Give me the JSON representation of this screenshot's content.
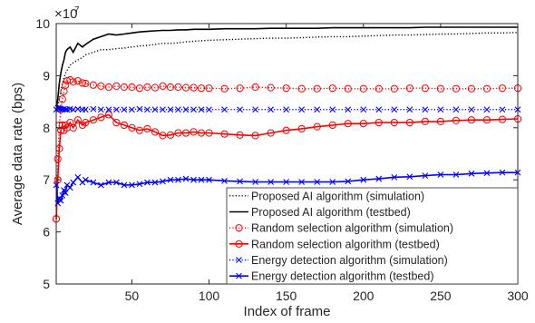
{
  "chart_data": {
    "type": "line",
    "title": "",
    "xlabel": "Index of frame",
    "ylabel": "Average data rate (bps)",
    "y_exponent_label": "×10",
    "y_exponent_power": "7",
    "xlim": [
      1,
      300
    ],
    "ylim": [
      5,
      10
    ],
    "x_ticks": [
      50,
      100,
      150,
      200,
      250,
      300
    ],
    "y_ticks": [
      5,
      6,
      7,
      8,
      9,
      10
    ],
    "grid": false,
    "legend_position": "bottom-right",
    "x": [
      1,
      2,
      3,
      4,
      5,
      6,
      7,
      8,
      10,
      12,
      15,
      18,
      20,
      25,
      30,
      35,
      40,
      45,
      50,
      55,
      60,
      65,
      70,
      75,
      80,
      85,
      90,
      95,
      100,
      110,
      120,
      130,
      140,
      150,
      160,
      170,
      180,
      190,
      200,
      210,
      220,
      230,
      240,
      250,
      260,
      270,
      280,
      290,
      300
    ],
    "series": [
      {
        "name": "Proposed AI algorithm (simulation)",
        "color": "#000000",
        "dash": "dotted",
        "marker": "none",
        "values": [
          8.3,
          8.4,
          8.55,
          8.7,
          8.85,
          8.95,
          9.05,
          9.1,
          9.2,
          9.25,
          9.3,
          9.35,
          9.4,
          9.45,
          9.5,
          9.5,
          9.52,
          9.53,
          9.55,
          9.57,
          9.58,
          9.6,
          9.62,
          9.62,
          9.63,
          9.65,
          9.66,
          9.67,
          9.68,
          9.69,
          9.7,
          9.71,
          9.72,
          9.72,
          9.73,
          9.74,
          9.75,
          9.75,
          9.76,
          9.77,
          9.78,
          9.78,
          9.79,
          9.8,
          9.8,
          9.81,
          9.82,
          9.82,
          9.83
        ]
      },
      {
        "name": "Proposed AI algorithm (testbed)",
        "color": "#000000",
        "dash": "solid",
        "marker": "none",
        "values": [
          8.35,
          8.55,
          8.85,
          9.05,
          9.2,
          9.3,
          9.45,
          9.5,
          9.55,
          9.45,
          9.62,
          9.55,
          9.6,
          9.7,
          9.75,
          9.8,
          9.78,
          9.8,
          9.82,
          9.84,
          9.85,
          9.86,
          9.87,
          9.87,
          9.88,
          9.88,
          9.89,
          9.89,
          9.89,
          9.9,
          9.9,
          9.9,
          9.91,
          9.91,
          9.91,
          9.91,
          9.92,
          9.92,
          9.92,
          9.92,
          9.92,
          9.92,
          9.93,
          9.93,
          9.93,
          9.93,
          9.93,
          9.93,
          9.93
        ]
      },
      {
        "name": "Random selection algorithm (simulation)",
        "color": "#ff0000",
        "dash": "dotted",
        "marker": "circle",
        "values": [
          6.25,
          7.4,
          8.05,
          8.35,
          8.55,
          8.7,
          8.82,
          8.9,
          8.92,
          8.88,
          8.9,
          8.86,
          8.85,
          8.82,
          8.8,
          8.78,
          8.8,
          8.78,
          8.78,
          8.76,
          8.78,
          8.77,
          8.8,
          8.78,
          8.78,
          8.77,
          8.77,
          8.76,
          8.76,
          8.75,
          8.76,
          8.78,
          8.77,
          8.76,
          8.75,
          8.75,
          8.76,
          8.75,
          8.75,
          8.75,
          8.75,
          8.76,
          8.76,
          8.75,
          8.75,
          8.75,
          8.75,
          8.76,
          8.76
        ]
      },
      {
        "name": "Random selection algorithm (testbed)",
        "color": "#ff0000",
        "dash": "solid",
        "marker": "circle",
        "values": [
          6.25,
          7.0,
          7.6,
          7.95,
          8.05,
          7.95,
          8.05,
          8.0,
          8.1,
          8.0,
          8.15,
          8.05,
          8.1,
          8.15,
          8.2,
          8.25,
          8.1,
          8.05,
          8.0,
          7.95,
          7.98,
          7.92,
          7.85,
          7.86,
          7.9,
          7.9,
          7.92,
          7.9,
          7.9,
          7.88,
          7.86,
          7.85,
          7.9,
          7.95,
          7.98,
          8.02,
          8.05,
          8.08,
          8.08,
          8.1,
          8.1,
          8.1,
          8.12,
          8.12,
          8.14,
          8.15,
          8.15,
          8.16,
          8.17
        ]
      },
      {
        "name": "Energy detection algorithm (simulation)",
        "color": "#0000ff",
        "dash": "dotted",
        "marker": "x",
        "values": [
          8.35,
          8.38,
          8.37,
          8.36,
          8.35,
          8.36,
          8.35,
          8.35,
          8.36,
          8.35,
          8.36,
          8.35,
          8.35,
          8.36,
          8.35,
          8.35,
          8.35,
          8.35,
          8.35,
          8.36,
          8.35,
          8.35,
          8.35,
          8.35,
          8.35,
          8.35,
          8.35,
          8.35,
          8.35,
          8.35,
          8.35,
          8.35,
          8.35,
          8.35,
          8.35,
          8.35,
          8.35,
          8.35,
          8.35,
          8.35,
          8.35,
          8.35,
          8.35,
          8.35,
          8.35,
          8.35,
          8.35,
          8.35,
          8.35
        ]
      },
      {
        "name": "Energy detection algorithm (testbed)",
        "color": "#0000ff",
        "dash": "solid",
        "marker": "x",
        "values": [
          6.9,
          6.55,
          6.65,
          6.6,
          6.7,
          6.8,
          6.75,
          6.9,
          6.85,
          6.95,
          7.05,
          6.95,
          7.0,
          6.95,
          6.9,
          6.95,
          6.95,
          6.9,
          6.9,
          6.92,
          6.95,
          6.95,
          6.97,
          7.0,
          7.0,
          7.02,
          7.0,
          7.0,
          7.0,
          6.98,
          6.97,
          6.96,
          6.96,
          6.96,
          6.96,
          6.96,
          6.96,
          6.97,
          7.0,
          7.02,
          7.05,
          7.06,
          7.08,
          7.1,
          7.1,
          7.12,
          7.13,
          7.14,
          7.14
        ]
      }
    ]
  }
}
